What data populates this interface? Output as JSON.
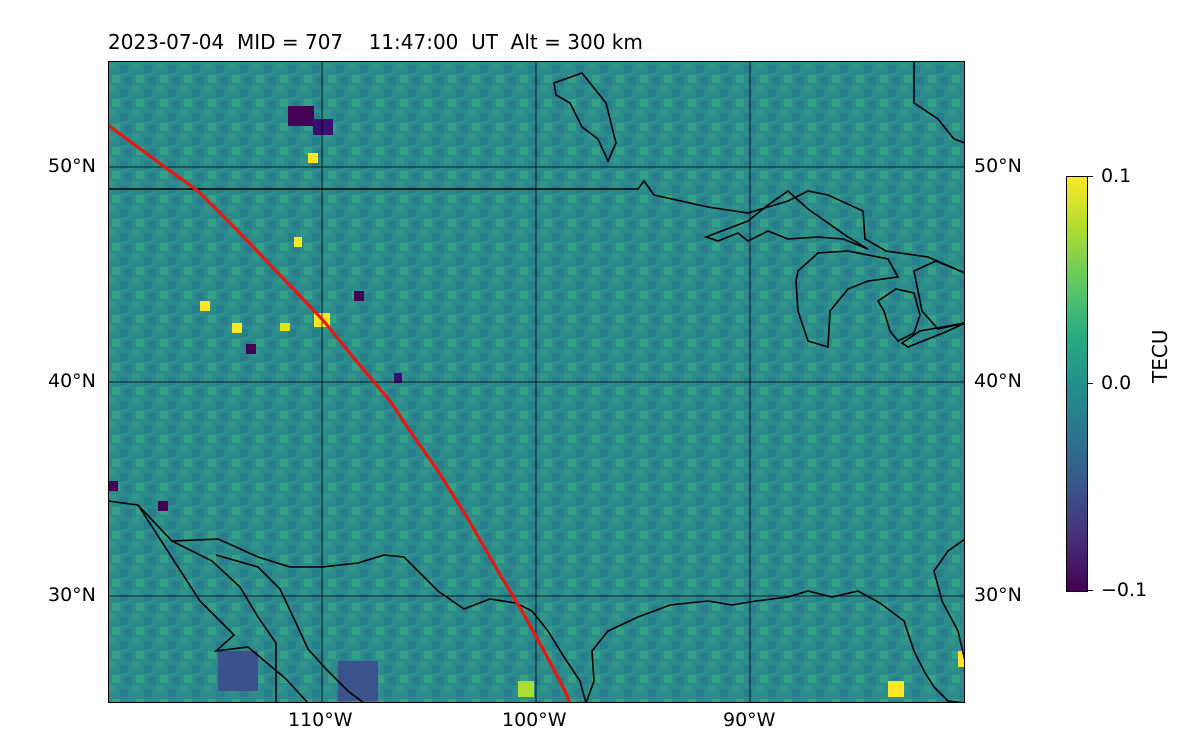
{
  "title": "2023-07-04  MID = 707    11:47:00  UT  Alt = 300 km",
  "lat_labels": [
    "50°N",
    "40°N",
    "30°N"
  ],
  "lon_labels": [
    "110°W",
    "100°W",
    "90°W"
  ],
  "colorbar": {
    "label": "TECU",
    "ticks": [
      "0.1",
      "0.0",
      "−0.1"
    ],
    "colormap": "viridis"
  },
  "colors": {
    "terminator": "#e8180f",
    "coastline": "#000000",
    "background_tec": "#2a8a8a"
  }
}
